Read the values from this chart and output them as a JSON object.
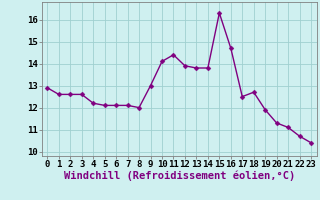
{
  "x": [
    0,
    1,
    2,
    3,
    4,
    5,
    6,
    7,
    8,
    9,
    10,
    11,
    12,
    13,
    14,
    15,
    16,
    17,
    18,
    19,
    20,
    21,
    22,
    23
  ],
  "y": [
    12.9,
    12.6,
    12.6,
    12.6,
    12.2,
    12.1,
    12.1,
    12.1,
    12.0,
    13.0,
    14.1,
    14.4,
    13.9,
    13.8,
    13.8,
    16.3,
    14.7,
    12.5,
    12.7,
    11.9,
    11.3,
    11.1,
    10.7,
    10.4
  ],
  "line_color": "#800080",
  "marker": "D",
  "marker_size": 2.5,
  "line_width": 1.0,
  "bg_color": "#cff0f0",
  "grid_color": "#a0d0d0",
  "xlabel": "Windchill (Refroidissement éolien,°C)",
  "xlabel_fontsize": 7.5,
  "tick_fontsize": 6.5,
  "xlim": [
    -0.5,
    23.5
  ],
  "ylim": [
    9.8,
    16.8
  ],
  "yticks": [
    10,
    11,
    12,
    13,
    14,
    15,
    16
  ],
  "xticks": [
    0,
    1,
    2,
    3,
    4,
    5,
    6,
    7,
    8,
    9,
    10,
    11,
    12,
    13,
    14,
    15,
    16,
    17,
    18,
    19,
    20,
    21,
    22,
    23
  ],
  "spine_color": "#808080"
}
